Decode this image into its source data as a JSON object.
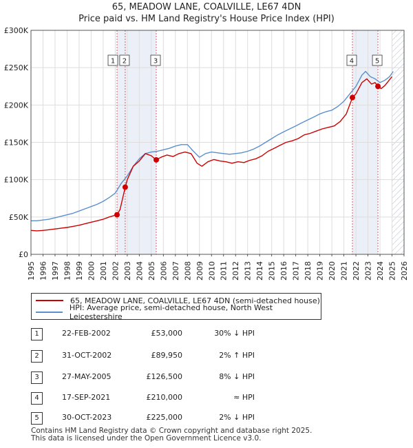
{
  "title_line1": "65, MEADOW LANE, COALVILLE, LE67 4DN",
  "title_line2": "Price paid vs. HM Land Registry's House Price Index (HPI)",
  "colors": {
    "price": "#cc0000",
    "hpi": "#5b8fcc",
    "grid": "#dddddd",
    "shade": "#dde6f4",
    "marker_line": "#d33"
  },
  "chart_data": {
    "type": "line",
    "x_range": [
      1995,
      2026
    ],
    "y_range": [
      0,
      300000
    ],
    "y_ticks": [
      0,
      50000,
      100000,
      150000,
      200000,
      250000,
      300000
    ],
    "y_tick_labels": [
      "£0",
      "£50K",
      "£100K",
      "£150K",
      "£200K",
      "£250K",
      "£300K"
    ],
    "x_ticks": [
      1995,
      1996,
      1997,
      1998,
      1999,
      2000,
      2001,
      2002,
      2003,
      2004,
      2005,
      2006,
      2007,
      2008,
      2009,
      2010,
      2011,
      2012,
      2013,
      2014,
      2015,
      2016,
      2017,
      2018,
      2019,
      2020,
      2021,
      2022,
      2023,
      2024,
      2025,
      2026
    ],
    "hatched_from": 2025.0,
    "series": [
      {
        "name": "65, MEADOW LANE, COALVILLE, LE67 4DN (semi-detached house)",
        "x": [
          1995.0,
          1995.5,
          1996.0,
          1996.5,
          1997.0,
          1997.5,
          1998.0,
          1998.5,
          1999.0,
          1999.5,
          2000.0,
          2000.5,
          2001.0,
          2001.5,
          2002.15,
          2002.4,
          2002.83,
          2003.0,
          2003.5,
          2004.0,
          2004.5,
          2005.0,
          2005.41,
          2005.8,
          2006.3,
          2006.8,
          2007.3,
          2007.8,
          2008.3,
          2008.8,
          2009.2,
          2009.7,
          2010.2,
          2010.7,
          2011.2,
          2011.7,
          2012.2,
          2012.7,
          2013.2,
          2013.7,
          2014.2,
          2014.7,
          2015.2,
          2015.7,
          2016.2,
          2016.7,
          2017.2,
          2017.7,
          2018.2,
          2018.7,
          2019.2,
          2019.7,
          2020.2,
          2020.7,
          2021.2,
          2021.71,
          2022.0,
          2022.5,
          2022.9,
          2023.3,
          2023.6,
          2023.83,
          2024.1,
          2024.4,
          2024.7,
          2025.0
        ],
        "values": [
          32000,
          31500,
          32000,
          33000,
          34000,
          35000,
          36000,
          37500,
          39000,
          41000,
          43000,
          45000,
          47000,
          50000,
          53000,
          60000,
          89950,
          100000,
          118000,
          125000,
          135000,
          132000,
          126500,
          130000,
          133000,
          131000,
          135000,
          137000,
          135000,
          122000,
          118000,
          124000,
          127000,
          125000,
          124000,
          122000,
          124000,
          123000,
          126000,
          128000,
          132000,
          138000,
          142000,
          146000,
          150000,
          152000,
          155000,
          160000,
          162000,
          165000,
          168000,
          170000,
          172000,
          178000,
          188000,
          210000,
          215000,
          230000,
          235000,
          228000,
          230000,
          225000,
          222000,
          226000,
          232000,
          238000
        ]
      },
      {
        "name": "HPI: Average price, semi-detached house, North West Leicestershire",
        "x": [
          1995.0,
          1995.5,
          1996.0,
          1996.5,
          1997.0,
          1997.5,
          1998.0,
          1998.5,
          1999.0,
          1999.5,
          2000.0,
          2000.5,
          2001.0,
          2001.5,
          2002.0,
          2002.5,
          2003.0,
          2003.5,
          2004.0,
          2004.5,
          2005.0,
          2005.5,
          2006.0,
          2006.5,
          2007.0,
          2007.5,
          2008.0,
          2008.5,
          2009.0,
          2009.5,
          2010.0,
          2010.5,
          2011.0,
          2011.5,
          2012.0,
          2012.5,
          2013.0,
          2013.5,
          2014.0,
          2014.5,
          2015.0,
          2015.5,
          2016.0,
          2016.5,
          2017.0,
          2017.5,
          2018.0,
          2018.5,
          2019.0,
          2019.5,
          2020.0,
          2020.5,
          2021.0,
          2021.5,
          2022.0,
          2022.5,
          2022.8,
          2023.2,
          2023.6,
          2024.0,
          2024.4,
          2024.8,
          2025.1
        ],
        "values": [
          45000,
          45000,
          46000,
          47000,
          49000,
          51000,
          53000,
          55000,
          58000,
          61000,
          64000,
          67000,
          71000,
          76000,
          82000,
          95000,
          105000,
          118000,
          128000,
          135000,
          137000,
          138000,
          140000,
          142000,
          145000,
          147000,
          147000,
          138000,
          130000,
          135000,
          137000,
          136000,
          135000,
          134000,
          135000,
          136000,
          138000,
          141000,
          145000,
          150000,
          155000,
          160000,
          164000,
          168000,
          172000,
          176000,
          180000,
          184000,
          188000,
          191000,
          193000,
          198000,
          205000,
          215000,
          225000,
          240000,
          245000,
          238000,
          235000,
          230000,
          233000,
          238000,
          245000
        ]
      }
    ],
    "sales": [
      {
        "label": "1",
        "x": 2002.15,
        "price": 53000
      },
      {
        "label": "2",
        "x": 2002.83,
        "price": 89950
      },
      {
        "label": "3",
        "x": 2005.41,
        "price": 126500
      },
      {
        "label": "4",
        "x": 2021.71,
        "price": 210000
      },
      {
        "label": "5",
        "x": 2023.83,
        "price": 225000
      }
    ]
  },
  "legend": {
    "price_label": "65, MEADOW LANE, COALVILLE, LE67 4DN (semi-detached house)",
    "hpi_label": "HPI: Average price, semi-detached house, North West Leicestershire"
  },
  "transactions": [
    {
      "num": "1",
      "date": "22-FEB-2002",
      "price": "£53,000",
      "rel": "30% ↓ HPI"
    },
    {
      "num": "2",
      "date": "31-OCT-2002",
      "price": "£89,950",
      "rel": "2% ↑ HPI"
    },
    {
      "num": "3",
      "date": "27-MAY-2005",
      "price": "£126,500",
      "rel": "8% ↓ HPI"
    },
    {
      "num": "4",
      "date": "17-SEP-2021",
      "price": "£210,000",
      "rel": "≈ HPI"
    },
    {
      "num": "5",
      "date": "30-OCT-2023",
      "price": "£225,000",
      "rel": "2% ↓ HPI"
    }
  ],
  "footer": {
    "line1": "Contains HM Land Registry data © Crown copyright and database right 2025.",
    "line2": "This data is licensed under the Open Government Licence v3.0."
  }
}
